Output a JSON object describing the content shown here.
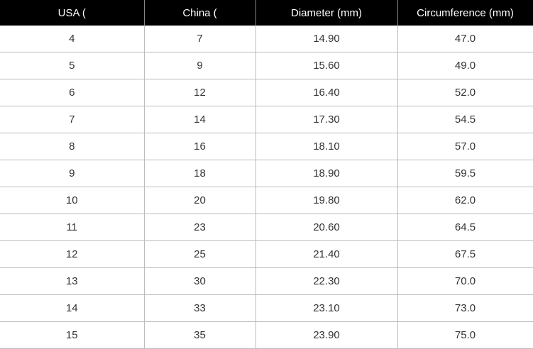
{
  "headers": [
    "USA (",
    "China (",
    "Diameter (mm)",
    "Circumference (mm)"
  ],
  "rows": [
    [
      "4",
      "7",
      "14.90",
      "47.0"
    ],
    [
      "5",
      "9",
      "15.60",
      "49.0"
    ],
    [
      "6",
      "12",
      "16.40",
      "52.0"
    ],
    [
      "7",
      "14",
      "17.30",
      "54.5"
    ],
    [
      "8",
      "16",
      "18.10",
      "57.0"
    ],
    [
      "9",
      "18",
      "18.90",
      "59.5"
    ],
    [
      "10",
      "20",
      "19.80",
      "62.0"
    ],
    [
      "11",
      "23",
      "20.60",
      "64.5"
    ],
    [
      "12",
      "25",
      "21.40",
      "67.5"
    ],
    [
      "13",
      "30",
      "22.30",
      "70.0"
    ],
    [
      "14",
      "33",
      "23.10",
      "73.0"
    ],
    [
      "15",
      "35",
      "23.90",
      "75.0"
    ]
  ]
}
